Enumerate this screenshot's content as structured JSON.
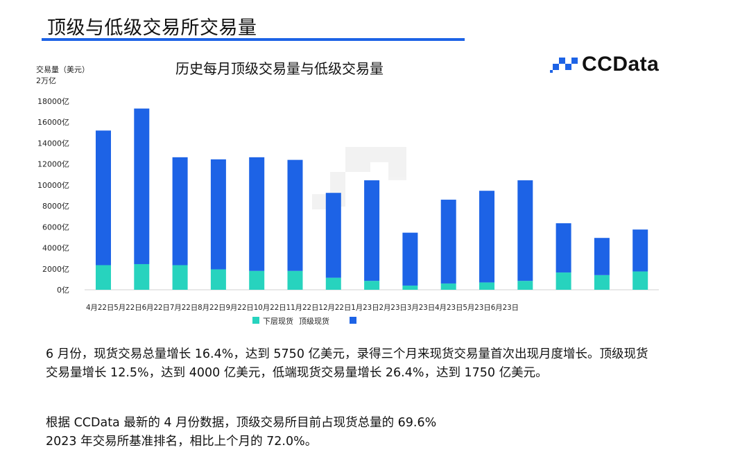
{
  "page": {
    "title": "顶级与低级交易所交易量"
  },
  "brand": {
    "name": "CCData",
    "icon": "ccdata-logo-icon",
    "accent": "#1d63e6",
    "secondary": "#27d3be"
  },
  "chart_data": {
    "type": "bar",
    "stacked": true,
    "title": "历史每月顶级交易量与低级交易量",
    "ylabel": "交易量（美元）",
    "yunit_note": "2万亿",
    "ylim": [
      0,
      18000
    ],
    "yticks": [
      "0亿",
      "2000亿",
      "4000亿",
      "6000亿",
      "8000亿",
      "10000亿",
      "12000亿",
      "14000亿",
      "16000亿",
      "18000亿"
    ],
    "ytick_values": [
      0,
      2000,
      4000,
      6000,
      8000,
      10000,
      12000,
      14000,
      16000,
      18000
    ],
    "categories": [
      "4月22日",
      "5月22日",
      "6月22日",
      "7月22日",
      "8月22日",
      "9月22日",
      "10月22日",
      "11月22日",
      "12月22日",
      "1月23日",
      "2月23日",
      "3月23日",
      "4月23日",
      "5月23日",
      "6月23日"
    ],
    "x_tick_text": "4月22日5月22日6月22日7月22日8月22日9月22日10月22日11月22日12月22日1月23日2月23日3月23日4月23日5月23日6月23日",
    "series": [
      {
        "name": "下层现货",
        "color": "#27d3be",
        "values": [
          2350,
          2450,
          2350,
          1950,
          1800,
          1800,
          1150,
          850,
          400,
          600,
          700,
          850,
          1650,
          1400,
          1750
        ]
      },
      {
        "name": "顶级现货",
        "color": "#1d63e6",
        "values": [
          12850,
          14850,
          10300,
          10500,
          10850,
          10600,
          8100,
          9600,
          5050,
          8000,
          8750,
          9600,
          4700,
          3550,
          4000
        ]
      }
    ],
    "grid": false,
    "legend_position": "bottom"
  },
  "text": {
    "para1_line1": "6 月份，现货交易总量增长 16.4%，达到 5750 亿美元，录得三个月来现货交易量首次出现月度增长。顶级现货",
    "para1_line2": "交易量增长 12.5%，达到 4000 亿美元，低端现货交易量增长 26.4%，达到 1750 亿美元。",
    "para2_line1": "根据 CCData 最新的 4 月份数据，顶级交易所目前占现货总量的 69.6%",
    "para2_line2": "2023 年交易所基准排名，相比上个月的 72.0%。"
  }
}
